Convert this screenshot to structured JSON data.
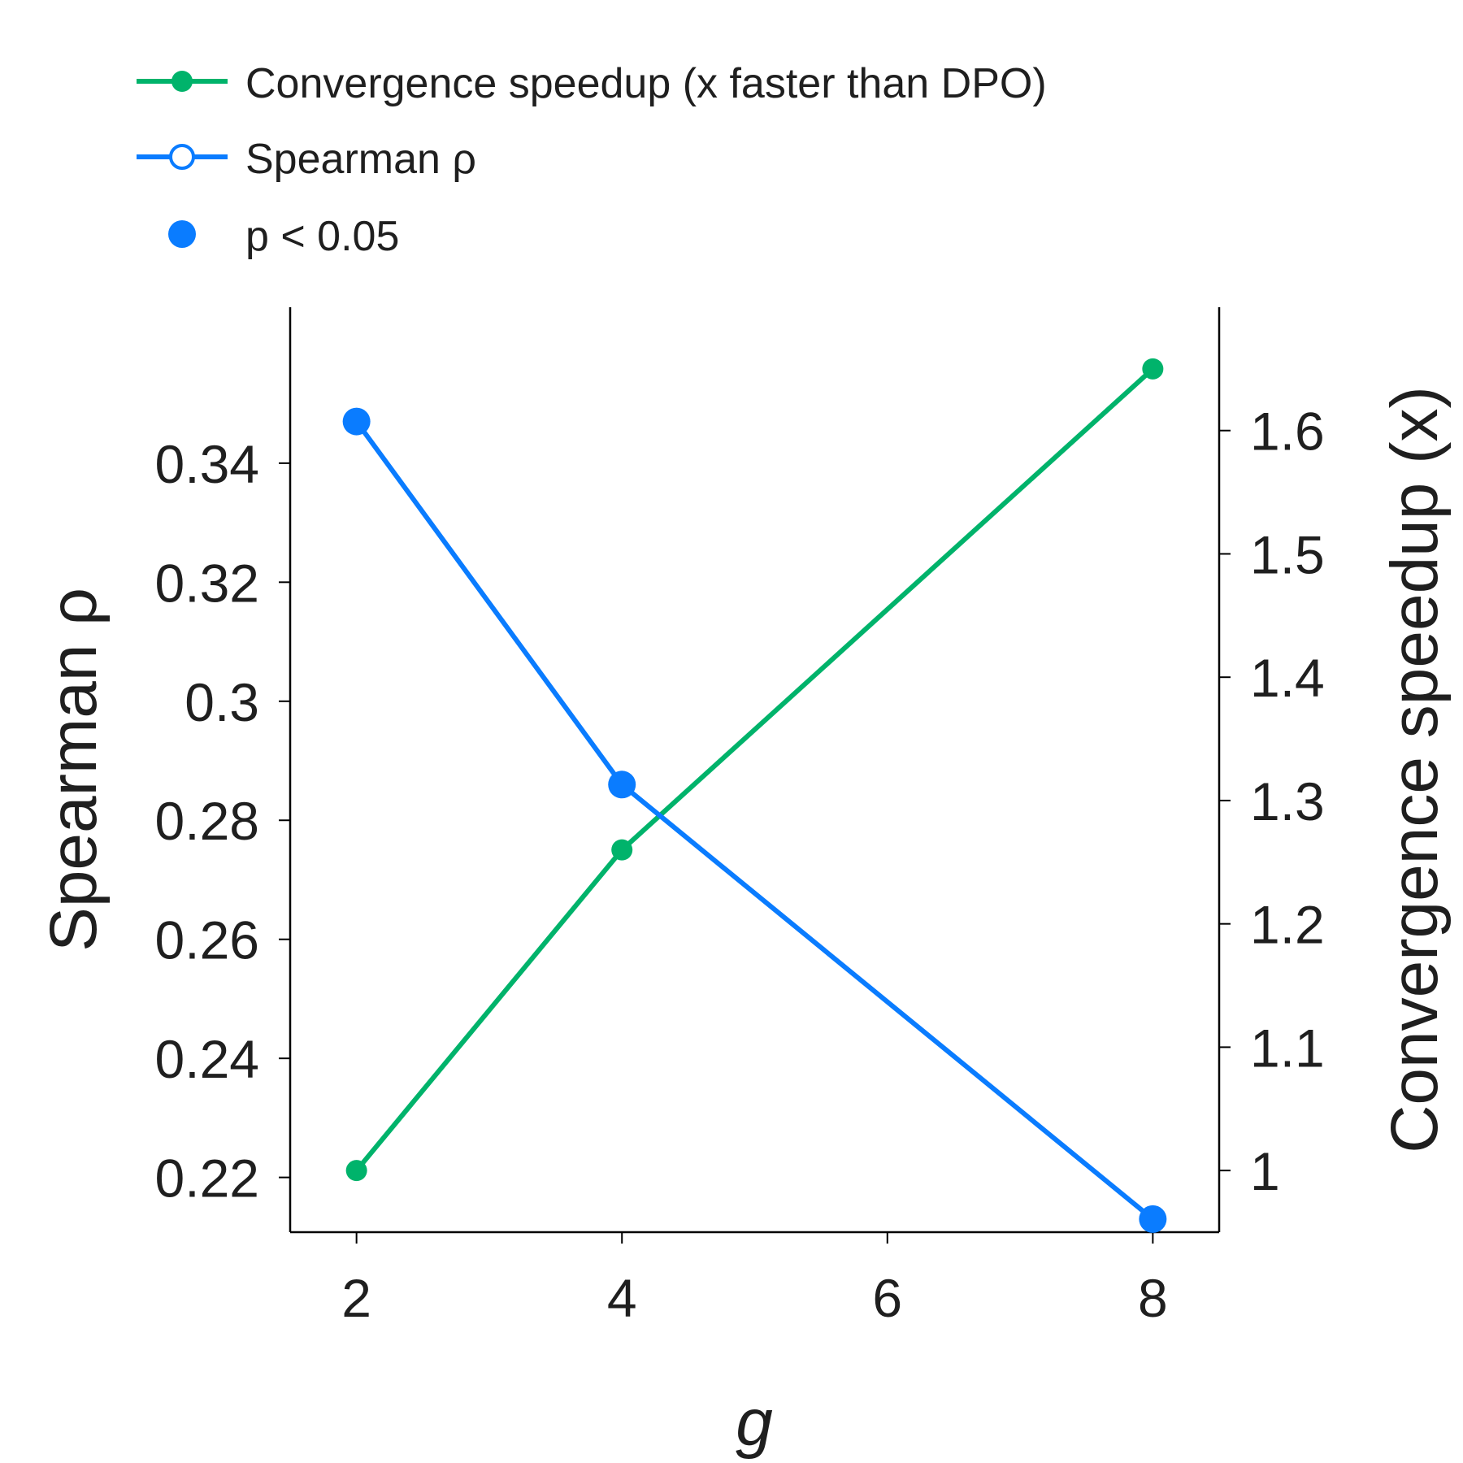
{
  "chart_data": {
    "type": "line",
    "x": [
      2,
      4,
      8
    ],
    "xticks": [
      2,
      4,
      6,
      8
    ],
    "xlim": [
      1.5,
      8.5
    ],
    "xlabel": "g",
    "ylabel_left": "Spearman ρ",
    "ylabel_right": "Convergence speedup (x)",
    "yticks_left": [
      {
        "value": 0.22,
        "label": "0.22"
      },
      {
        "value": 0.24,
        "label": "0.24"
      },
      {
        "value": 0.26,
        "label": "0.26"
      },
      {
        "value": 0.28,
        "label": "0.28"
      },
      {
        "value": 0.3,
        "label": "0.3"
      },
      {
        "value": 0.32,
        "label": "0.32"
      },
      {
        "value": 0.34,
        "label": "0.34"
      }
    ],
    "ylim_left": [
      0.2108,
      0.3662
    ],
    "yticks_right": [
      {
        "value": 1.0,
        "label": "1"
      },
      {
        "value": 1.1,
        "label": "1.1"
      },
      {
        "value": 1.2,
        "label": "1.2"
      },
      {
        "value": 1.3,
        "label": "1.3"
      },
      {
        "value": 1.4,
        "label": "1.4"
      },
      {
        "value": 1.5,
        "label": "1.5"
      },
      {
        "value": 1.6,
        "label": "1.6"
      }
    ],
    "ylim_right": [
      0.95,
      1.7
    ],
    "series": [
      {
        "name": "Convergence speedup (x faster than DPO)",
        "axis": "right",
        "color": "#00b36b",
        "values": [
          1.0,
          1.26,
          1.65
        ]
      },
      {
        "name": "Spearman ρ",
        "axis": "left",
        "color": "#0a7cff",
        "values": [
          0.347,
          0.286,
          0.213
        ],
        "significant": [
          true,
          true,
          true
        ]
      }
    ],
    "legend": {
      "position": "top",
      "entries": [
        {
          "label": "Convergence speedup (x faster than DPO)",
          "style": "line-filled-marker",
          "color": "#00b36b"
        },
        {
          "label": "Spearman ρ",
          "style": "line-open-marker",
          "color": "#0a7cff"
        },
        {
          "label": "p < 0.05",
          "style": "filled-marker",
          "color": "#0a7cff"
        }
      ]
    }
  }
}
